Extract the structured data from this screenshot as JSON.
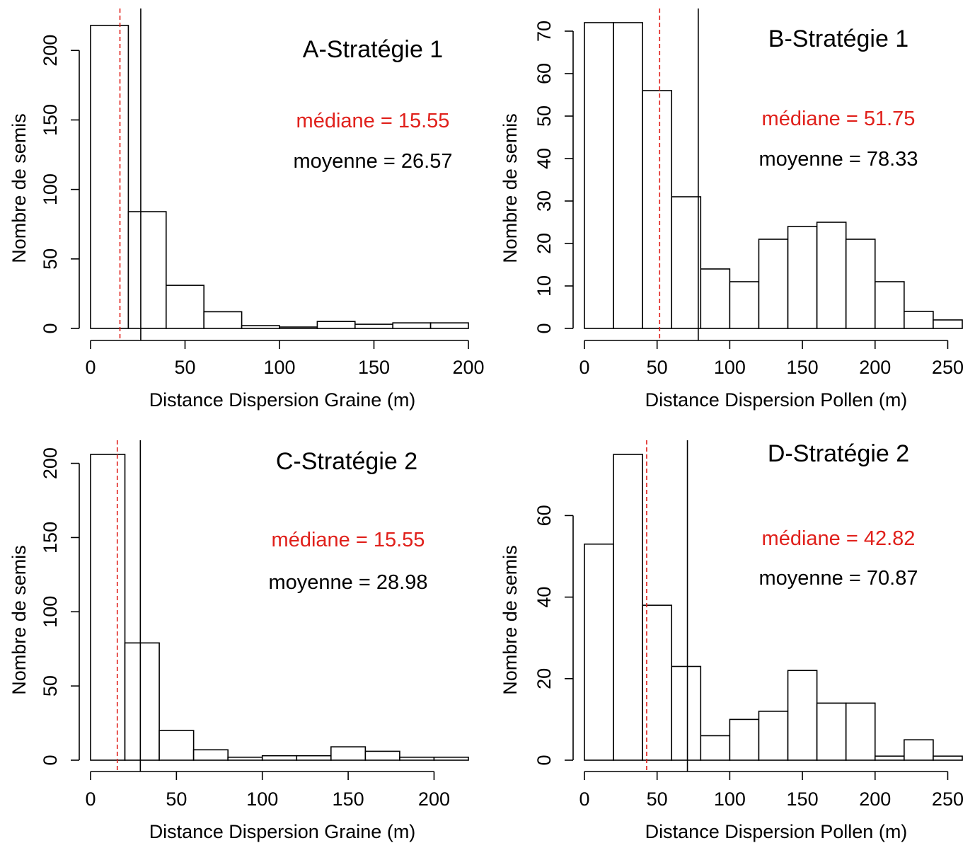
{
  "chart_data": [
    {
      "type": "bar",
      "title": "A-Stratégie 1",
      "xlabel": "Distance Dispersion Graine (m)",
      "ylabel": "Nombre de semis",
      "xlim": [
        0,
        200
      ],
      "ylim": [
        0,
        220
      ],
      "xticks": [
        0,
        50,
        100,
        150,
        200
      ],
      "yticks": [
        0,
        50,
        100,
        150,
        200
      ],
      "bin_edges": [
        0,
        20,
        40,
        60,
        80,
        100,
        120,
        140,
        160,
        180,
        200
      ],
      "values": [
        218,
        84,
        31,
        12,
        2,
        1,
        5,
        3,
        4,
        4
      ],
      "median": 15.55,
      "mean": 26.57,
      "median_word": "médiane",
      "mean_word": "moyenne",
      "grid": false,
      "colors": {
        "median": "#e0201b",
        "mean": "#000000",
        "bar_fill": "#ffffff",
        "bar_stroke": "#000000"
      }
    },
    {
      "type": "bar",
      "title": "B-Stratégie 1",
      "xlabel": "Distance Dispersion Pollen (m)",
      "ylabel": "Nombre de semis",
      "xlim": [
        0,
        260
      ],
      "ylim": [
        0,
        72
      ],
      "xticks": [
        0,
        50,
        100,
        150,
        200,
        250
      ],
      "yticks": [
        0,
        10,
        20,
        30,
        40,
        50,
        60,
        70
      ],
      "bin_edges": [
        0,
        20,
        40,
        60,
        80,
        100,
        120,
        140,
        160,
        180,
        200,
        220,
        240,
        260
      ],
      "values": [
        72,
        72,
        56,
        31,
        14,
        11,
        21,
        24,
        25,
        21,
        11,
        4,
        2
      ],
      "median": 51.75,
      "mean": 78.33,
      "median_word": "médiane",
      "mean_word": "moyenne",
      "grid": false,
      "colors": {
        "median": "#e0201b",
        "mean": "#000000",
        "bar_fill": "#ffffff",
        "bar_stroke": "#000000"
      }
    },
    {
      "type": "bar",
      "title": "C-Stratégie 2",
      "xlabel": "Distance Dispersion Graine (m)",
      "ylabel": "Nombre de semis",
      "xlim": [
        0,
        220
      ],
      "ylim": [
        0,
        206
      ],
      "xticks": [
        0,
        50,
        100,
        150,
        200
      ],
      "yticks": [
        0,
        50,
        100,
        150,
        200
      ],
      "bin_edges": [
        0,
        20,
        40,
        60,
        80,
        100,
        120,
        140,
        160,
        180,
        200,
        220
      ],
      "values": [
        206,
        79,
        20,
        7,
        2,
        3,
        3,
        9,
        6,
        2,
        2
      ],
      "median": 15.55,
      "mean": 28.98,
      "median_word": "médiane",
      "mean_word": "moyenne",
      "grid": false,
      "colors": {
        "median": "#e0201b",
        "mean": "#000000",
        "bar_fill": "#ffffff",
        "bar_stroke": "#000000"
      }
    },
    {
      "type": "bar",
      "title": "D-Stratégie 2",
      "xlabel": "Distance Dispersion Pollen (m)",
      "ylabel": "Nombre de semis",
      "xlim": [
        0,
        260
      ],
      "ylim": [
        0,
        75
      ],
      "xticks": [
        0,
        50,
        100,
        150,
        200,
        250
      ],
      "yticks": [
        0,
        20,
        40,
        60
      ],
      "bin_edges": [
        0,
        20,
        40,
        60,
        80,
        100,
        120,
        140,
        160,
        180,
        200,
        220,
        240,
        260
      ],
      "values": [
        53,
        75,
        38,
        23,
        6,
        10,
        12,
        22,
        14,
        14,
        1,
        5,
        1
      ],
      "median": 42.82,
      "mean": 70.87,
      "median_word": "médiane",
      "mean_word": "moyenne",
      "grid": false,
      "colors": {
        "median": "#e0201b",
        "mean": "#000000",
        "bar_fill": "#ffffff",
        "bar_stroke": "#000000"
      }
    }
  ]
}
